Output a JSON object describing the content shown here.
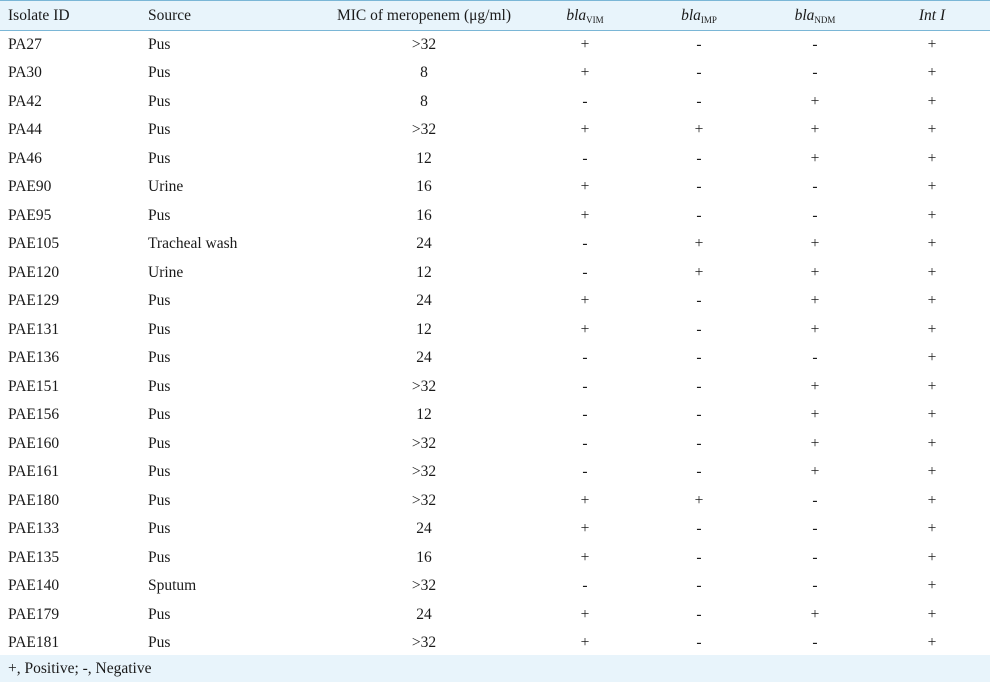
{
  "table": {
    "columns": [
      {
        "base": "Isolate ID",
        "sub": "",
        "italic": false
      },
      {
        "base": "Source",
        "sub": "",
        "italic": false
      },
      {
        "base": "MIC of meropenem (μg/ml)",
        "sub": "",
        "italic": false
      },
      {
        "base": "bla",
        "sub": "VIM",
        "italic": true
      },
      {
        "base": "bla",
        "sub": "IMP",
        "italic": true
      },
      {
        "base": "bla",
        "sub": "NDM",
        "italic": true
      },
      {
        "base": "Int I",
        "sub": "",
        "italic": true
      }
    ],
    "rows": [
      [
        "PA27",
        "Pus",
        ">32",
        "+",
        "-",
        "-",
        "+"
      ],
      [
        "PA30",
        "Pus",
        "8",
        "+",
        "-",
        "-",
        "+"
      ],
      [
        "PA42",
        "Pus",
        "8",
        "-",
        "-",
        "+",
        "+"
      ],
      [
        "PA44",
        "Pus",
        ">32",
        "+",
        "+",
        "+",
        "+"
      ],
      [
        "PA46",
        "Pus",
        "12",
        "-",
        "-",
        "+",
        "+"
      ],
      [
        "PAE90",
        "Urine",
        "16",
        "+",
        "-",
        "-",
        "+"
      ],
      [
        "PAE95",
        "Pus",
        "16",
        "+",
        "-",
        "-",
        "+"
      ],
      [
        "PAE105",
        "Tracheal wash",
        "24",
        "-",
        "+",
        "+",
        "+"
      ],
      [
        "PAE120",
        "Urine",
        "12",
        "-",
        "+",
        "+",
        "+"
      ],
      [
        "PAE129",
        "Pus",
        "24",
        "+",
        "-",
        "+",
        "+"
      ],
      [
        "PAE131",
        "Pus",
        "12",
        "+",
        "-",
        "+",
        "+"
      ],
      [
        "PAE136",
        "Pus",
        "24",
        "-",
        "-",
        "-",
        "+"
      ],
      [
        "PAE151",
        "Pus",
        ">32",
        "-",
        "-",
        "+",
        "+"
      ],
      [
        "PAE156",
        "Pus",
        "12",
        "-",
        "-",
        "+",
        "+"
      ],
      [
        "PAE160",
        "Pus",
        ">32",
        "-",
        "-",
        "+",
        "+"
      ],
      [
        "PAE161",
        "Pus",
        ">32",
        "-",
        "-",
        "+",
        "+"
      ],
      [
        "PAE180",
        "Pus",
        ">32",
        "+",
        "+",
        "-",
        "+"
      ],
      [
        "PAE133",
        "Pus",
        "24",
        "+",
        "-",
        "-",
        "+"
      ],
      [
        "PAE135",
        "Pus",
        "16",
        "+",
        "-",
        "-",
        "+"
      ],
      [
        "PAE140",
        "Sputum",
        ">32",
        "-",
        "-",
        "-",
        "+"
      ],
      [
        "PAE179",
        "Pus",
        "24",
        "+",
        "-",
        "+",
        "+"
      ],
      [
        "PAE181",
        "Pus",
        ">32",
        "+",
        "-",
        "-",
        "+"
      ]
    ]
  },
  "footnote": "+, Positive; -, Negative",
  "colors": {
    "header_bg": "#e8f4fb",
    "rule": "#7ab6d6"
  }
}
